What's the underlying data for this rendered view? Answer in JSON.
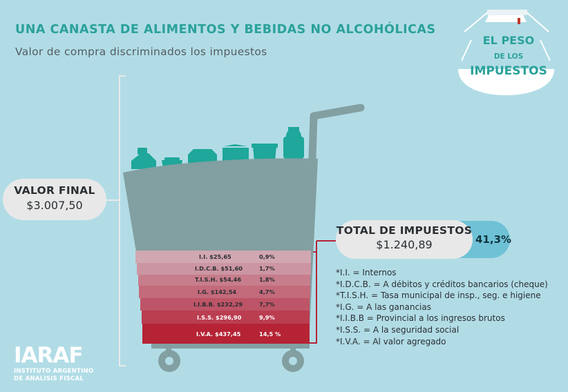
{
  "header": {
    "title": "UNA CANASTA DE ALIMENTOS Y BEBIDAS NO ALCOHÓLICAS",
    "subtitle": "Valor de compra discriminados los impuestos"
  },
  "badge": {
    "line1": "EL PESO",
    "line2": "DE LOS",
    "line3": "IMPUESTOS"
  },
  "valor_final": {
    "label": "VALOR FINAL",
    "value": "$3.007,50"
  },
  "total_impuestos": {
    "label": "TOTAL DE IMPUESTOS",
    "value": "$1.240,89",
    "percent": "41,3%"
  },
  "taxes": [
    {
      "label": "I.I. $25,65",
      "percent": "0,9%",
      "color": "#d1a7b1"
    },
    {
      "label": "I.D.C.B. $51,60",
      "percent": "1,7%",
      "color": "#cc95a2"
    },
    {
      "label": "T.I.S.H. $54,46",
      "percent": "1,8%",
      "color": "#c77d8c"
    },
    {
      "label": "I.G. $142,54",
      "percent": "4,7%",
      "color": "#c36a7b"
    },
    {
      "label": "I.I.B.B. $232,29",
      "percent": "7,7%",
      "color": "#be5467"
    },
    {
      "label": "I.S.S. $296,90",
      "percent": "9,9%",
      "color": "#bb3d50"
    },
    {
      "label": "I.V.A. $437,45",
      "percent": "14,5 %",
      "color": "#b52335"
    }
  ],
  "legend": [
    "*I.I. = Internos",
    "*I.D.C.B. = A débitos y créditos bancarios (cheque)",
    "*T.I.S.H. = Tasa municipal de insp., seg. e higiene",
    "*I.G. = A las ganancias",
    "*I.I.B.B = Provincial a los ingresos brutos",
    "*I.S.S. = A la seguridad social",
    "*I.V.A. = Al valor agregado"
  ],
  "logo": {
    "name": "IARAF",
    "line1": "INSTITUTO ARGENTINO",
    "line2": "DE ANALISIS FISCAL"
  },
  "colors": {
    "background": "#b1dce6",
    "accent": "#2aa19a",
    "cart": "#829fa1",
    "products": "#1ea79a",
    "pill": "#e8e8e8",
    "total_tab": "#6fc2d6",
    "bracket_red": "#b52335"
  }
}
